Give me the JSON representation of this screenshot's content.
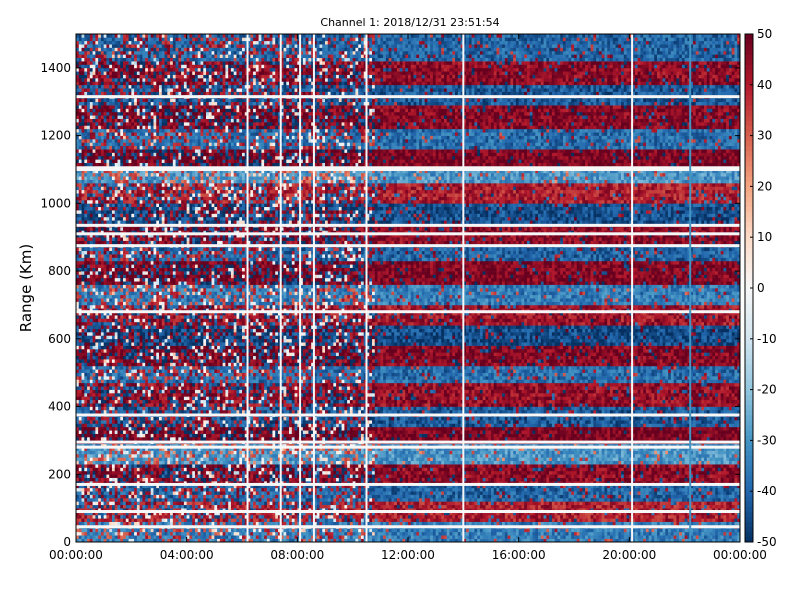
{
  "chart_data": {
    "type": "heatmap",
    "title": "Channel 1: 2018/12/31 23:51:54",
    "xlabel": "",
    "ylabel": "Range (Km)",
    "x_ticks": [
      "00:00:00",
      "04:00:00",
      "08:00:00",
      "12:00:00",
      "16:00:00",
      "20:00:00",
      "00:00:00"
    ],
    "x_range_hours": [
      0,
      24
    ],
    "y_ticks": [
      0,
      200,
      400,
      600,
      800,
      1000,
      1200,
      1400
    ],
    "ylim": [
      0,
      1500
    ],
    "colorbar": {
      "colormap": "RdBu_r",
      "min": -50,
      "max": 50,
      "ticks": [
        -50,
        -40,
        -30,
        -20,
        -10,
        0,
        10,
        20,
        30,
        40,
        50
      ],
      "colors": [
        "#053061",
        "#2166ac",
        "#4393c3",
        "#92c5de",
        "#d1e5f0",
        "#f7f7f7",
        "#fddbc7",
        "#f4a582",
        "#d6604d",
        "#b2182b",
        "#67001f"
      ]
    },
    "grid": false,
    "pattern": {
      "time_columns": 240,
      "range_rows": 150,
      "band_sign_by_range_km": [
        {
          "range": [
            0,
            60
          ],
          "value": -35
        },
        {
          "range": [
            60,
            120
          ],
          "value": 40
        },
        {
          "range": [
            120,
            175
          ],
          "value": -40
        },
        {
          "range": [
            175,
            230
          ],
          "value": 45
        },
        {
          "range": [
            230,
            290
          ],
          "value": -30
        },
        {
          "range": [
            290,
            340
          ],
          "value": 48
        },
        {
          "range": [
            340,
            400
          ],
          "value": -42
        },
        {
          "range": [
            400,
            470
          ],
          "value": 44
        },
        {
          "range": [
            470,
            520
          ],
          "value": -38
        },
        {
          "range": [
            520,
            580
          ],
          "value": 46
        },
        {
          "range": [
            580,
            640
          ],
          "value": -45
        },
        {
          "range": [
            640,
            700
          ],
          "value": 42
        },
        {
          "range": [
            700,
            760
          ],
          "value": -35
        },
        {
          "range": [
            760,
            830
          ],
          "value": 47
        },
        {
          "range": [
            830,
            880
          ],
          "value": -40
        },
        {
          "range": [
            880,
            940
          ],
          "value": 45
        },
        {
          "range": [
            940,
            1000
          ],
          "value": -44
        },
        {
          "range": [
            1000,
            1060
          ],
          "value": 40
        },
        {
          "range": [
            1060,
            1100
          ],
          "value": -30
        },
        {
          "range": [
            1100,
            1160
          ],
          "value": 48
        },
        {
          "range": [
            1160,
            1220
          ],
          "value": -38
        },
        {
          "range": [
            1220,
            1290
          ],
          "value": 46
        },
        {
          "range": [
            1290,
            1350
          ],
          "value": -42
        },
        {
          "range": [
            1350,
            1420
          ],
          "value": 45
        },
        {
          "range": [
            1420,
            1500
          ],
          "value": -40
        }
      ],
      "white_range_lines_km": [
        45,
        90,
        170,
        280,
        295,
        375,
        680,
        875,
        910,
        935,
        1100,
        1105,
        1315
      ],
      "white_time_lines_hours": [
        6.2,
        7.4,
        8.1,
        8.6,
        10.5,
        14.0,
        20.1
      ],
      "blue_time_lines_hours": [
        22.2
      ],
      "noisy_until_hours": 10.8
    }
  }
}
